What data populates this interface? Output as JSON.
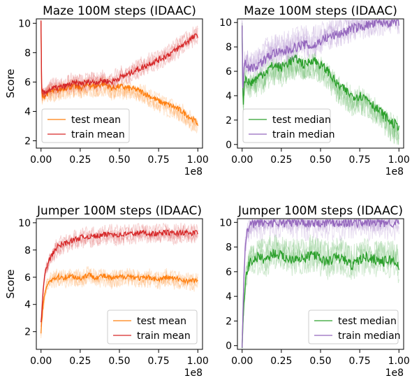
{
  "figure": {
    "background": "#ffffff"
  },
  "colors": {
    "test": "#ff7f0e",
    "train_mean": "#d62728",
    "train_median": "#9467bd",
    "test_median": "#2ca02c"
  },
  "chart_data": [
    {
      "type": "line",
      "title": "Maze 100M steps (IDAAC)",
      "ylabel": "Score",
      "xlabel": "",
      "x_offset_label": "1e8",
      "xlim": [
        -0.03,
        1.03
      ],
      "ylim": [
        1.5,
        10.3
      ],
      "xticks": [
        0.0,
        0.25,
        0.5,
        0.75,
        1.0
      ],
      "xtick_labels": [
        "0.00",
        "0.25",
        "0.50",
        "0.75",
        "1.00"
      ],
      "yticks": [
        2,
        4,
        6,
        8,
        10
      ],
      "ytick_labels": [
        "2",
        "4",
        "6",
        "8",
        "10"
      ],
      "legend": {
        "placement": "lower-left"
      },
      "series": [
        {
          "name": "test mean",
          "color": "#ff7f0e",
          "x": [
            0,
            0.005,
            0.01,
            0.02,
            0.05,
            0.1,
            0.15,
            0.2,
            0.25,
            0.3,
            0.35,
            0.4,
            0.45,
            0.5,
            0.55,
            0.6,
            0.65,
            0.7,
            0.75,
            0.8,
            0.85,
            0.9,
            0.95,
            1.0
          ],
          "y": [
            10,
            4.3,
            5.2,
            5.0,
            5.3,
            5.4,
            5.6,
            5.7,
            5.6,
            5.8,
            5.7,
            5.9,
            5.6,
            5.7,
            5.6,
            5.5,
            5.3,
            5.0,
            4.7,
            4.5,
            4.3,
            4.0,
            3.6,
            3.2
          ]
        },
        {
          "name": "train mean",
          "color": "#d62728",
          "x": [
            0,
            0.005,
            0.01,
            0.02,
            0.05,
            0.1,
            0.15,
            0.2,
            0.25,
            0.3,
            0.35,
            0.4,
            0.45,
            0.5,
            0.55,
            0.6,
            0.65,
            0.7,
            0.75,
            0.8,
            0.85,
            0.9,
            0.95,
            1.0
          ],
          "y": [
            10,
            4.6,
            5.4,
            5.2,
            5.5,
            5.6,
            5.7,
            5.9,
            5.9,
            6.0,
            6.0,
            6.1,
            6.0,
            6.3,
            6.5,
            6.8,
            7.0,
            7.3,
            7.5,
            7.8,
            8.1,
            8.5,
            8.9,
            9.2
          ]
        }
      ]
    },
    {
      "type": "line",
      "title": "Maze 100M steps (IDAAC)",
      "ylabel": "",
      "xlabel": "",
      "x_offset_label": "1e8",
      "xlim": [
        -0.03,
        1.03
      ],
      "ylim": [
        -0.3,
        10.3
      ],
      "xticks": [
        0.0,
        0.25,
        0.5,
        0.75,
        1.0
      ],
      "xtick_labels": [
        "0.00",
        "0.25",
        "0.50",
        "0.75",
        "1.00"
      ],
      "yticks": [
        0,
        2,
        4,
        6,
        8,
        10
      ],
      "ytick_labels": [
        "0",
        "2",
        "4",
        "6",
        "8",
        "10"
      ],
      "legend": {
        "placement": "lower-left"
      },
      "series": [
        {
          "name": "test median",
          "color": "#2ca02c",
          "x": [
            0,
            0.005,
            0.01,
            0.02,
            0.05,
            0.1,
            0.15,
            0.2,
            0.25,
            0.3,
            0.35,
            0.4,
            0.45,
            0.5,
            0.55,
            0.6,
            0.65,
            0.7,
            0.75,
            0.8,
            0.85,
            0.9,
            0.95,
            1.0
          ],
          "y": [
            10,
            2.5,
            4.5,
            5.5,
            5.0,
            5.5,
            6.0,
            6.5,
            6.3,
            6.8,
            7.0,
            6.5,
            7.0,
            6.5,
            6.0,
            5.0,
            4.5,
            4.0,
            4.0,
            3.8,
            3.0,
            2.5,
            1.8,
            1.5
          ]
        },
        {
          "name": "train median",
          "color": "#9467bd",
          "x": [
            0,
            0.005,
            0.01,
            0.02,
            0.05,
            0.1,
            0.15,
            0.2,
            0.25,
            0.3,
            0.35,
            0.4,
            0.45,
            0.5,
            0.55,
            0.6,
            0.65,
            0.7,
            0.75,
            0.8,
            0.85,
            0.9,
            0.95,
            1.0
          ],
          "y": [
            10,
            3.5,
            6.5,
            6.8,
            6.2,
            6.5,
            7.0,
            7.5,
            7.5,
            7.8,
            8.0,
            8.2,
            8.0,
            8.5,
            8.8,
            9.0,
            9.2,
            9.5,
            9.6,
            9.8,
            9.9,
            10,
            10,
            10
          ]
        }
      ]
    },
    {
      "type": "line",
      "title": "Jumper 100M steps (IDAAC)",
      "ylabel": "Score",
      "xlabel": "",
      "x_offset_label": "1e8",
      "xlim": [
        -0.03,
        1.03
      ],
      "ylim": [
        0.7,
        10.3
      ],
      "xticks": [
        0.0,
        0.25,
        0.5,
        0.75,
        1.0
      ],
      "xtick_labels": [
        "0.00",
        "0.25",
        "0.50",
        "0.75",
        "1.00"
      ],
      "yticks": [
        2,
        4,
        6,
        8,
        10
      ],
      "ytick_labels": [
        "2",
        "4",
        "6",
        "8",
        "10"
      ],
      "legend": {
        "placement": "lower-right"
      },
      "series": [
        {
          "name": "test mean",
          "color": "#ff7f0e",
          "x": [
            0,
            0.01,
            0.02,
            0.03,
            0.05,
            0.08,
            0.1,
            0.15,
            0.2,
            0.25,
            0.3,
            0.35,
            0.4,
            0.45,
            0.5,
            0.55,
            0.6,
            0.65,
            0.7,
            0.75,
            0.8,
            0.85,
            0.9,
            0.95,
            1.0
          ],
          "y": [
            2.0,
            3.5,
            4.5,
            5.2,
            5.7,
            5.9,
            6.0,
            6.0,
            6.1,
            5.9,
            6.2,
            6.0,
            6.1,
            5.9,
            6.0,
            6.1,
            6.0,
            5.9,
            6.0,
            5.8,
            6.0,
            5.9,
            5.8,
            5.7,
            5.8
          ]
        },
        {
          "name": "train mean",
          "color": "#d62728",
          "x": [
            0,
            0.01,
            0.02,
            0.03,
            0.05,
            0.08,
            0.1,
            0.15,
            0.2,
            0.25,
            0.3,
            0.35,
            0.4,
            0.45,
            0.5,
            0.55,
            0.6,
            0.65,
            0.7,
            0.75,
            0.8,
            0.85,
            0.9,
            0.95,
            1.0
          ],
          "y": [
            2.5,
            4.5,
            5.8,
            6.5,
            7.2,
            7.8,
            8.2,
            8.5,
            8.7,
            8.9,
            9.0,
            9.0,
            9.1,
            9.2,
            9.1,
            9.2,
            9.2,
            9.3,
            9.2,
            9.2,
            9.3,
            9.2,
            9.3,
            9.2,
            9.3
          ]
        }
      ]
    },
    {
      "type": "line",
      "title": "Jumper 100M steps (IDAAC)",
      "ylabel": "",
      "xlabel": "",
      "x_offset_label": "1e8",
      "xlim": [
        -0.03,
        1.03
      ],
      "ylim": [
        -0.3,
        10.3
      ],
      "xticks": [
        0.0,
        0.25,
        0.5,
        0.75,
        1.0
      ],
      "xtick_labels": [
        "0.00",
        "0.25",
        "0.50",
        "0.75",
        "1.00"
      ],
      "yticks": [
        0,
        2,
        4,
        6,
        8,
        10
      ],
      "ytick_labels": [
        "0",
        "2",
        "4",
        "6",
        "8",
        "10"
      ],
      "legend": {
        "placement": "lower-right"
      },
      "series": [
        {
          "name": "test median",
          "color": "#2ca02c",
          "x": [
            0,
            0.01,
            0.02,
            0.03,
            0.05,
            0.08,
            0.1,
            0.15,
            0.2,
            0.25,
            0.3,
            0.35,
            0.4,
            0.45,
            0.5,
            0.55,
            0.6,
            0.65,
            0.7,
            0.75,
            0.8,
            0.85,
            0.9,
            0.95,
            1.0
          ],
          "y": [
            0,
            3.0,
            5.0,
            6.0,
            6.8,
            7.0,
            7.2,
            7.0,
            7.5,
            7.3,
            7.0,
            7.2,
            7.0,
            7.5,
            7.0,
            6.8,
            7.2,
            7.0,
            6.5,
            7.0,
            7.2,
            7.0,
            6.8,
            7.0,
            6.5
          ]
        },
        {
          "name": "train median",
          "color": "#9467bd",
          "x": [
            0,
            0.01,
            0.02,
            0.03,
            0.05,
            0.08,
            0.1,
            0.15,
            0.2,
            0.25,
            0.3,
            0.35,
            0.4,
            0.45,
            0.5,
            0.55,
            0.6,
            0.65,
            0.7,
            0.75,
            0.8,
            0.85,
            0.9,
            0.95,
            1.0
          ],
          "y": [
            0,
            5.0,
            8.0,
            9.2,
            9.7,
            9.9,
            10,
            10,
            10,
            10,
            10,
            10,
            10,
            10,
            10,
            10,
            10,
            10,
            10,
            10,
            10,
            10,
            10,
            10,
            10
          ]
        }
      ]
    }
  ]
}
